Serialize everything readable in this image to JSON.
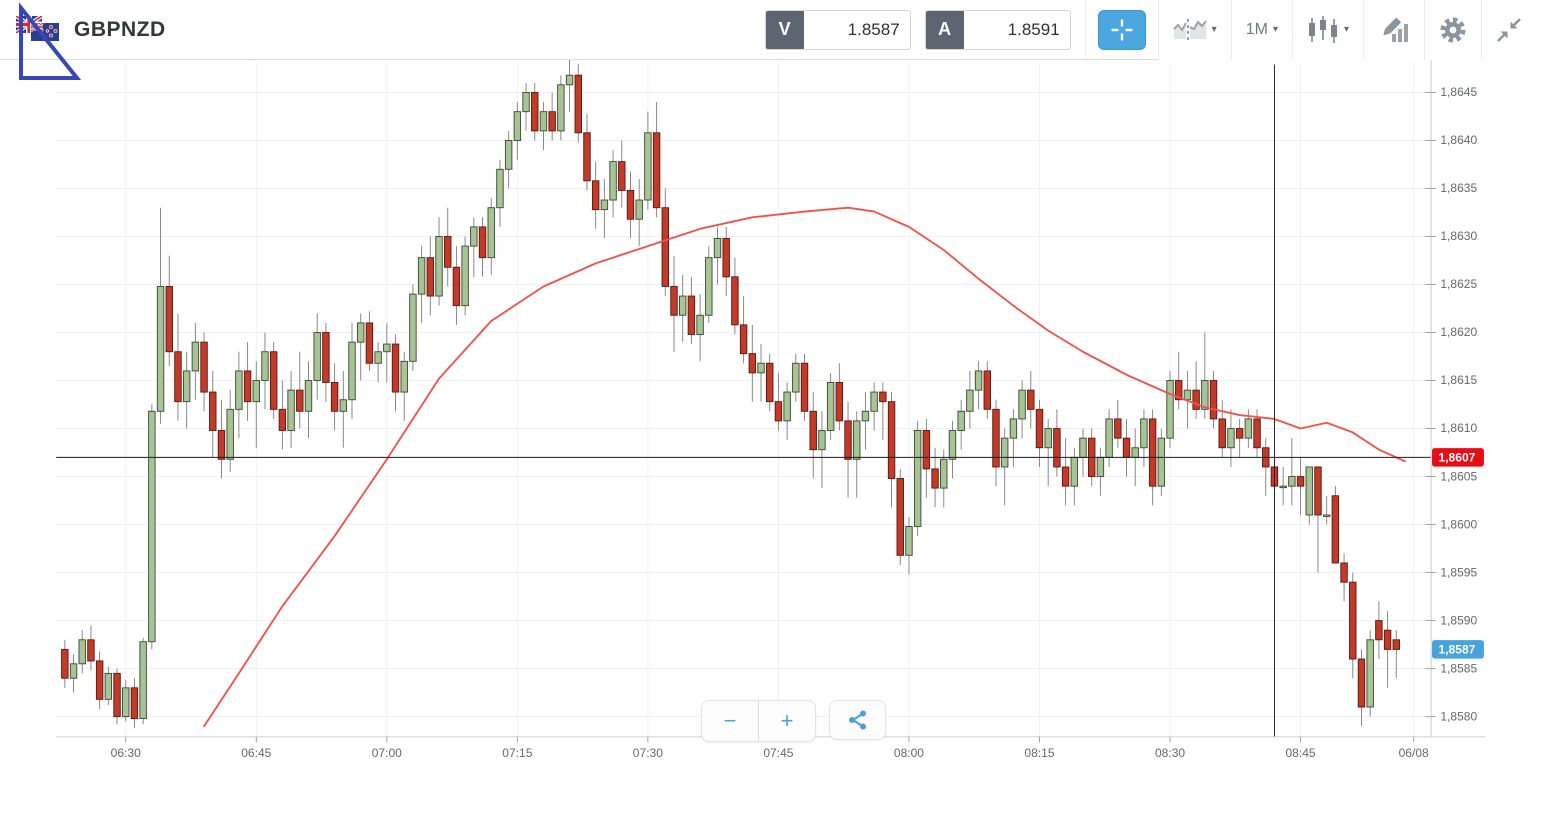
{
  "header": {
    "symbol": "GBPNZD",
    "bid": {
      "label": "V",
      "value": "1.8587"
    },
    "ask": {
      "label": "A",
      "value": "1.8591"
    },
    "timeframe": "1M",
    "caret": "▾"
  },
  "controls": {
    "zoom_out_label": "−",
    "zoom_in_label": "+"
  },
  "colors": {
    "up_fill": "#a7c497",
    "up_stroke": "#3d4a2f",
    "down_fill": "#c23b2a",
    "down_stroke": "#5e180e",
    "wick": "#808080",
    "ma_line": "#f2524c",
    "grid": "#f1f1f4",
    "axis_line": "#c9c9c9",
    "tick": "#9a9a9a",
    "label": "#65696c",
    "marker_red": "#e50d18",
    "marker_blue": "#47a4da",
    "crosshair": "#1a1a1a",
    "accent_blue": "#4ba7e0",
    "icon_gray": "#8a959e",
    "triangle_blue": "#3847b8"
  },
  "chart_data": {
    "type": "candlestick",
    "symbol": "GBPNZD",
    "interval": "1M",
    "start_time": "06:23",
    "minutes_per_candle": 1,
    "candles": [
      [
        1.8587,
        1.8588,
        1.8583,
        1.8584
      ],
      [
        1.8584,
        1.85865,
        1.85825,
        1.85855
      ],
      [
        1.85855,
        1.8589,
        1.85845,
        1.8588
      ],
      [
        1.8588,
        1.85895,
        1.85848,
        1.85858
      ],
      [
        1.85858,
        1.85868,
        1.85808,
        1.85818
      ],
      [
        1.85818,
        1.85852,
        1.85812,
        1.85845
      ],
      [
        1.85845,
        1.8585,
        1.85792,
        1.858
      ],
      [
        1.858,
        1.85838,
        1.85795,
        1.8583
      ],
      [
        1.8583,
        1.8584,
        1.85788,
        1.85798
      ],
      [
        1.85798,
        1.85882,
        1.85792,
        1.85878
      ],
      [
        1.85878,
        1.86125,
        1.8587,
        1.86118
      ],
      [
        1.86118,
        1.8633,
        1.86105,
        1.86248
      ],
      [
        1.86248,
        1.8628,
        1.86165,
        1.8618
      ],
      [
        1.8618,
        1.8622,
        1.86108,
        1.86128
      ],
      [
        1.86128,
        1.8618,
        1.861,
        1.8616
      ],
      [
        1.8616,
        1.8621,
        1.8613,
        1.8619
      ],
      [
        1.8619,
        1.862,
        1.86118,
        1.86138
      ],
      [
        1.86138,
        1.8616,
        1.8607,
        1.86098
      ],
      [
        1.86098,
        1.8613,
        1.86048,
        1.86068
      ],
      [
        1.86068,
        1.8614,
        1.86055,
        1.8612
      ],
      [
        1.8612,
        1.8618,
        1.8609,
        1.8616
      ],
      [
        1.8616,
        1.8619,
        1.86108,
        1.86128
      ],
      [
        1.86128,
        1.8617,
        1.8608,
        1.8615
      ],
      [
        1.8615,
        1.862,
        1.8612,
        1.8618
      ],
      [
        1.8618,
        1.8619,
        1.8611,
        1.8612
      ],
      [
        1.8612,
        1.8615,
        1.86078,
        1.86098
      ],
      [
        1.86098,
        1.8616,
        1.8608,
        1.8614
      ],
      [
        1.8614,
        1.8618,
        1.861,
        1.86118
      ],
      [
        1.86118,
        1.8617,
        1.8609,
        1.8615
      ],
      [
        1.8615,
        1.8622,
        1.8613,
        1.862
      ],
      [
        1.862,
        1.8621,
        1.86128,
        1.86148
      ],
      [
        1.86148,
        1.86168,
        1.86098,
        1.86118
      ],
      [
        1.86118,
        1.8616,
        1.8608,
        1.8613
      ],
      [
        1.8613,
        1.8621,
        1.8611,
        1.8619
      ],
      [
        1.8619,
        1.8622,
        1.8615,
        1.8621
      ],
      [
        1.8621,
        1.86222,
        1.8616,
        1.86168
      ],
      [
        1.86168,
        1.8619,
        1.86148,
        1.8618
      ],
      [
        1.8618,
        1.8621,
        1.86148,
        1.86188
      ],
      [
        1.86188,
        1.86198,
        1.86118,
        1.86138
      ],
      [
        1.86138,
        1.8618,
        1.86108,
        1.8617
      ],
      [
        1.8617,
        1.8625,
        1.8616,
        1.8624
      ],
      [
        1.8624,
        1.8629,
        1.8621,
        1.86278
      ],
      [
        1.86278,
        1.863,
        1.86218,
        1.86238
      ],
      [
        1.86238,
        1.8632,
        1.86228,
        1.863
      ],
      [
        1.863,
        1.8633,
        1.86248,
        1.86268
      ],
      [
        1.86268,
        1.8629,
        1.86208,
        1.86228
      ],
      [
        1.86228,
        1.863,
        1.86218,
        1.8629
      ],
      [
        1.8629,
        1.8632,
        1.86258,
        1.8631
      ],
      [
        1.8631,
        1.8632,
        1.86258,
        1.86278
      ],
      [
        1.86278,
        1.8634,
        1.8626,
        1.8633
      ],
      [
        1.8633,
        1.8638,
        1.8631,
        1.8637
      ],
      [
        1.8637,
        1.8641,
        1.8635,
        1.864
      ],
      [
        1.864,
        1.8644,
        1.8638,
        1.8643
      ],
      [
        1.8643,
        1.8646,
        1.8641,
        1.8645
      ],
      [
        1.8645,
        1.8646,
        1.864,
        1.8641
      ],
      [
        1.8641,
        1.8644,
        1.8639,
        1.8643
      ],
      [
        1.8643,
        1.8645,
        1.864,
        1.8641
      ],
      [
        1.8641,
        1.86468,
        1.864,
        1.86458
      ],
      [
        1.86458,
        1.86488,
        1.8643,
        1.86468
      ],
      [
        1.86468,
        1.8648,
        1.86398,
        1.86408
      ],
      [
        1.86408,
        1.86428,
        1.86348,
        1.86358
      ],
      [
        1.86358,
        1.86378,
        1.86308,
        1.86328
      ],
      [
        1.86328,
        1.8636,
        1.86298,
        1.86338
      ],
      [
        1.86338,
        1.8639,
        1.8632,
        1.86378
      ],
      [
        1.86378,
        1.864,
        1.8633,
        1.86348
      ],
      [
        1.86348,
        1.86368,
        1.86298,
        1.86318
      ],
      [
        1.86318,
        1.8636,
        1.8629,
        1.86338
      ],
      [
        1.86338,
        1.8643,
        1.86328,
        1.86408
      ],
      [
        1.86408,
        1.8644,
        1.8632,
        1.8633
      ],
      [
        1.8633,
        1.8635,
        1.86238,
        1.86248
      ],
      [
        1.86248,
        1.8628,
        1.8618,
        1.86218
      ],
      [
        1.86218,
        1.8626,
        1.8619,
        1.86238
      ],
      [
        1.86238,
        1.86258,
        1.86188,
        1.86198
      ],
      [
        1.86198,
        1.8624,
        1.8617,
        1.86218
      ],
      [
        1.86218,
        1.8629,
        1.8621,
        1.86278
      ],
      [
        1.86278,
        1.8631,
        1.8625,
        1.86298
      ],
      [
        1.86298,
        1.8631,
        1.86238,
        1.86258
      ],
      [
        1.86258,
        1.86278,
        1.86198,
        1.86208
      ],
      [
        1.86208,
        1.86238,
        1.86168,
        1.86178
      ],
      [
        1.86178,
        1.86208,
        1.86128,
        1.86158
      ],
      [
        1.86158,
        1.86188,
        1.86128,
        1.86168
      ],
      [
        1.86168,
        1.86178,
        1.86118,
        1.86128
      ],
      [
        1.86128,
        1.86158,
        1.86098,
        1.86108
      ],
      [
        1.86108,
        1.86148,
        1.86088,
        1.86138
      ],
      [
        1.86138,
        1.86178,
        1.86128,
        1.86168
      ],
      [
        1.86168,
        1.86178,
        1.86108,
        1.86118
      ],
      [
        1.86118,
        1.86138,
        1.86048,
        1.86078
      ],
      [
        1.86078,
        1.86118,
        1.86038,
        1.86098
      ],
      [
        1.86098,
        1.86158,
        1.86088,
        1.86148
      ],
      [
        1.86148,
        1.86168,
        1.86098,
        1.86108
      ],
      [
        1.86108,
        1.86128,
        1.86028,
        1.86068
      ],
      [
        1.86068,
        1.86118,
        1.86028,
        1.86108
      ],
      [
        1.86108,
        1.86138,
        1.86078,
        1.86118
      ],
      [
        1.86118,
        1.86148,
        1.86098,
        1.86138
      ],
      [
        1.86138,
        1.86148,
        1.86088,
        1.86128
      ],
      [
        1.86128,
        1.86138,
        1.86018,
        1.86048
      ],
      [
        1.86048,
        1.86058,
        1.85958,
        1.85968
      ],
      [
        1.85968,
        1.86008,
        1.85948,
        1.85998
      ],
      [
        1.85998,
        1.86108,
        1.85988,
        1.86098
      ],
      [
        1.86098,
        1.8611,
        1.86028,
        1.86058
      ],
      [
        1.86058,
        1.8608,
        1.86018,
        1.86038
      ],
      [
        1.86038,
        1.86078,
        1.86018,
        1.86068
      ],
      [
        1.86068,
        1.86108,
        1.86048,
        1.86098
      ],
      [
        1.86098,
        1.8613,
        1.86078,
        1.86118
      ],
      [
        1.86118,
        1.8616,
        1.861,
        1.8614
      ],
      [
        1.8614,
        1.8617,
        1.8612,
        1.8616
      ],
      [
        1.8616,
        1.8617,
        1.8611,
        1.8612
      ],
      [
        1.8612,
        1.8613,
        1.8604,
        1.8606
      ],
      [
        1.8606,
        1.861,
        1.8602,
        1.8609
      ],
      [
        1.8609,
        1.8612,
        1.8606,
        1.8611
      ],
      [
        1.8611,
        1.8615,
        1.8609,
        1.8614
      ],
      [
        1.8614,
        1.8616,
        1.861,
        1.8612
      ],
      [
        1.8612,
        1.8613,
        1.8606,
        1.8608
      ],
      [
        1.8608,
        1.8611,
        1.8604,
        1.861
      ],
      [
        1.861,
        1.8612,
        1.8605,
        1.8606
      ],
      [
        1.8606,
        1.8609,
        1.8602,
        1.8604
      ],
      [
        1.8604,
        1.8608,
        1.8602,
        1.8607
      ],
      [
        1.8607,
        1.861,
        1.8605,
        1.8609
      ],
      [
        1.8609,
        1.861,
        1.8604,
        1.8605
      ],
      [
        1.8605,
        1.8608,
        1.8603,
        1.8607
      ],
      [
        1.8607,
        1.8612,
        1.8606,
        1.8611
      ],
      [
        1.8611,
        1.8613,
        1.8608,
        1.8609
      ],
      [
        1.8609,
        1.8611,
        1.8605,
        1.8607
      ],
      [
        1.8607,
        1.861,
        1.8604,
        1.8608
      ],
      [
        1.8608,
        1.8612,
        1.8606,
        1.8611
      ],
      [
        1.8611,
        1.8612,
        1.8602,
        1.8604
      ],
      [
        1.8604,
        1.861,
        1.8603,
        1.8609
      ],
      [
        1.8609,
        1.8616,
        1.8608,
        1.8615
      ],
      [
        1.8615,
        1.8618,
        1.8612,
        1.8613
      ],
      [
        1.8613,
        1.8616,
        1.861,
        1.8614
      ],
      [
        1.8614,
        1.8617,
        1.8611,
        1.8612
      ],
      [
        1.8612,
        1.862,
        1.8611,
        1.8615
      ],
      [
        1.8615,
        1.8616,
        1.861,
        1.8611
      ],
      [
        1.8611,
        1.8613,
        1.8607,
        1.8608
      ],
      [
        1.8608,
        1.8612,
        1.8606,
        1.861
      ],
      [
        1.861,
        1.8611,
        1.8607,
        1.8609
      ],
      [
        1.8609,
        1.8612,
        1.8608,
        1.8611
      ],
      [
        1.8611,
        1.8612,
        1.8607,
        1.8608
      ],
      [
        1.8608,
        1.8609,
        1.8603,
        1.8606
      ],
      [
        1.8606,
        1.8607,
        1.8601,
        1.8604
      ],
      [
        1.8604,
        1.8606,
        1.8602,
        1.8604
      ],
      [
        1.8604,
        1.8609,
        1.8602,
        1.8605
      ],
      [
        1.8605,
        1.8607,
        1.8601,
        1.8604
      ],
      [
        1.8601,
        1.8606,
        1.86,
        1.8606
      ],
      [
        1.8606,
        1.8606,
        1.8595,
        1.8601
      ],
      [
        1.8601,
        1.8603,
        1.86,
        1.8601
      ],
      [
        1.8603,
        1.8604,
        1.8596,
        1.8596
      ],
      [
        1.8596,
        1.8597,
        1.8592,
        1.8594
      ],
      [
        1.8594,
        1.8595,
        1.8584,
        1.8586
      ],
      [
        1.8586,
        1.8587,
        1.8579,
        1.8581
      ],
      [
        1.8581,
        1.8589,
        1.858,
        1.8588
      ],
      [
        1.859,
        1.8592,
        1.8586,
        1.8588
      ],
      [
        1.8589,
        1.8591,
        1.8583,
        1.8587
      ],
      [
        1.8588,
        1.8589,
        1.8584,
        1.8587
      ]
    ],
    "ma_line": {
      "name": "moving-average",
      "times": [
        "06:39",
        "06:43",
        "06:48",
        "06:54",
        "07:00",
        "07:06",
        "07:12",
        "07:18",
        "07:24",
        "07:30",
        "07:36",
        "07:42",
        "07:48",
        "07:53",
        "07:56",
        "08:00",
        "08:04",
        "08:08",
        "08:12",
        "08:16",
        "08:20",
        "08:25",
        "08:30",
        "08:34",
        "08:38",
        "08:42",
        "08:45",
        "08:48",
        "08:51",
        "08:54",
        "08:57"
      ],
      "values": [
        1.8579,
        1.85845,
        1.85915,
        1.85988,
        1.86068,
        1.86152,
        1.86212,
        1.86248,
        1.86272,
        1.8629,
        1.86308,
        1.8632,
        1.86326,
        1.8633,
        1.86326,
        1.8631,
        1.86286,
        1.86256,
        1.86228,
        1.86202,
        1.8618,
        1.86156,
        1.86136,
        1.86122,
        1.86114,
        1.8611,
        1.861,
        1.86106,
        1.86096,
        1.86078,
        1.86066
      ]
    },
    "y_axis": {
      "labels": [
        "1,8645",
        "1,8640",
        "1,8635",
        "1,8630",
        "1,8625",
        "1,8620",
        "1,8615",
        "1,8610",
        "1,8605",
        "1,8600",
        "1,8595",
        "1,8590",
        "1,8585",
        "1,8580"
      ],
      "values": [
        1.8645,
        1.864,
        1.8635,
        1.863,
        1.8625,
        1.862,
        1.8615,
        1.861,
        1.8605,
        1.86,
        1.8595,
        1.859,
        1.8585,
        1.858
      ],
      "max": 1.86479,
      "min": 1.85779
    },
    "x_axis": {
      "labels": [
        "06:30",
        "06:45",
        "07:00",
        "07:15",
        "07:30",
        "07:45",
        "08:00",
        "08:15",
        "08:30",
        "08:45",
        "06/08"
      ],
      "position_times": [
        "06:30",
        "06:45",
        "07:00",
        "07:15",
        "07:30",
        "07:45",
        "08:00",
        "08:15",
        "08:30",
        "08:45",
        "08:58"
      ]
    },
    "price_markers": [
      {
        "name": "price-line-marker",
        "label": "1,8607",
        "value": 1.8607,
        "style": "red-badge-black-line"
      },
      {
        "name": "last-price-marker",
        "label": "1,8587",
        "value": 1.8587,
        "style": "blue-badge"
      }
    ],
    "crosshair_time": "08:42",
    "legend_position": "none",
    "grid": true
  }
}
